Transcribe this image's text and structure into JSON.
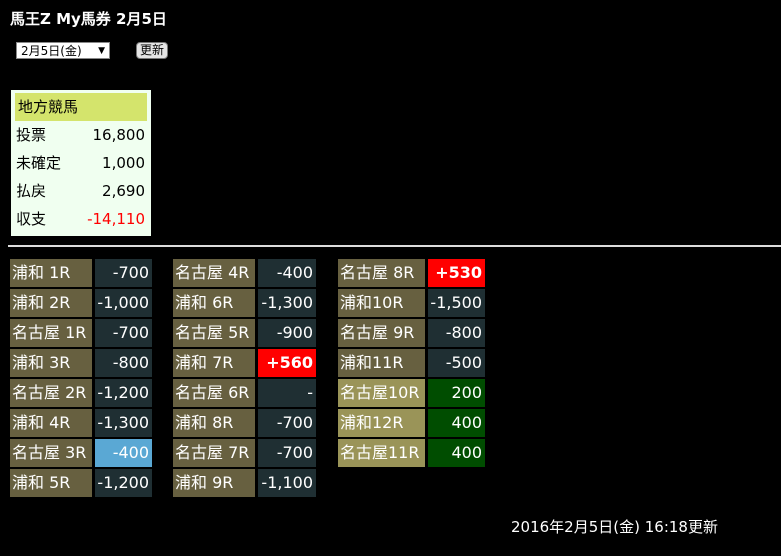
{
  "title": "馬王Z My馬券 2月5日",
  "date_select": {
    "value": "2月5日(金)",
    "icon": "dropdown-arrow-icon"
  },
  "refresh_label": "更新",
  "summary": {
    "header": "地方競馬",
    "rows": [
      {
        "label": "投票",
        "value": "16,800"
      },
      {
        "label": "未確定",
        "value": "1,000"
      },
      {
        "label": "払戻",
        "value": "2,690"
      },
      {
        "label": "収支",
        "value": "-14,110",
        "negative": true
      }
    ]
  },
  "colors": {
    "label": "#676040",
    "label_pending": "#9a9458",
    "value": "#1f2f33",
    "win": "#ff0000",
    "pending": "#004d00",
    "highlight": "#5aa8d4"
  },
  "columns": [
    [
      {
        "race": "浦和 1R",
        "value": "-700"
      },
      {
        "race": "浦和 2R",
        "value": "-1,000"
      },
      {
        "race": "名古屋 1R",
        "value": "-700"
      },
      {
        "race": "浦和 3R",
        "value": "-800"
      },
      {
        "race": "名古屋 2R",
        "value": "-1,200"
      },
      {
        "race": "浦和 4R",
        "value": "-1,300"
      },
      {
        "race": "名古屋 3R",
        "value": "-400",
        "status": "blue"
      },
      {
        "race": "浦和 5R",
        "value": "-1,200"
      }
    ],
    [
      {
        "race": "名古屋 4R",
        "value": "-400"
      },
      {
        "race": "浦和 6R",
        "value": "-1,300"
      },
      {
        "race": "名古屋 5R",
        "value": "-900"
      },
      {
        "race": "浦和 7R",
        "value": "+560",
        "status": "red"
      },
      {
        "race": "名古屋 6R",
        "value": "-"
      },
      {
        "race": "浦和 8R",
        "value": "-700"
      },
      {
        "race": "名古屋 7R",
        "value": "-700"
      },
      {
        "race": "浦和 9R",
        "value": "-1,100"
      }
    ],
    [
      {
        "race": "名古屋 8R",
        "value": "+530",
        "status": "red"
      },
      {
        "race": "浦和10R",
        "value": "-1,500"
      },
      {
        "race": "名古屋 9R",
        "value": "-800"
      },
      {
        "race": "浦和11R",
        "value": "-500"
      },
      {
        "race": "名古屋10R",
        "value": "200",
        "status": "green"
      },
      {
        "race": "浦和12R",
        "value": "400",
        "status": "green"
      },
      {
        "race": "名古屋11R",
        "value": "400",
        "status": "green"
      }
    ]
  ],
  "footer": "2016年2月5日(金) 16:18更新"
}
